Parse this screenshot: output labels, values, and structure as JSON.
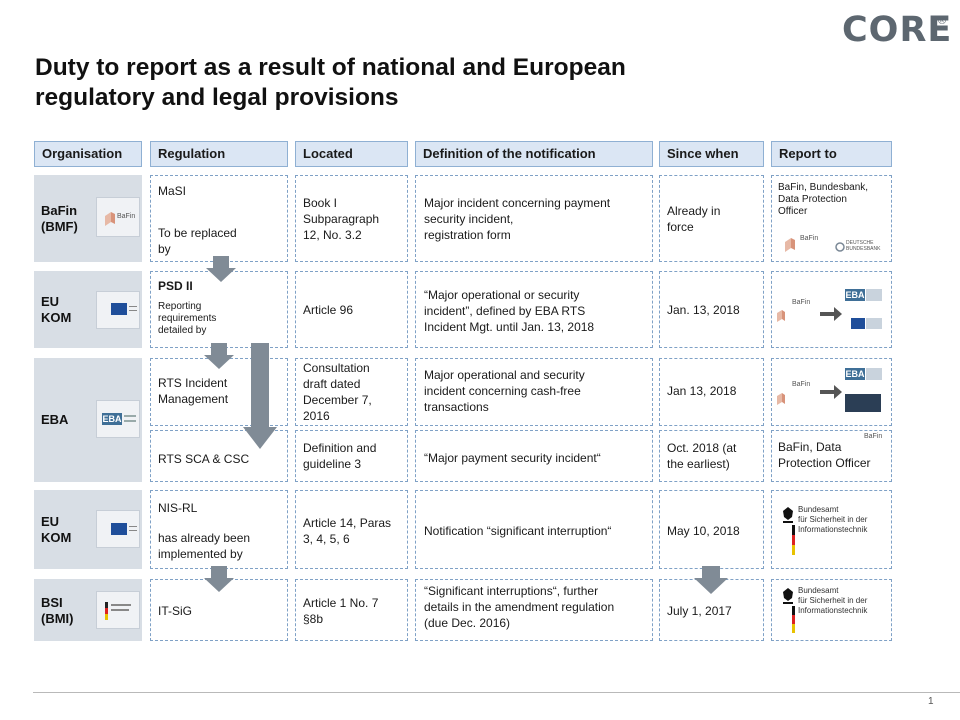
{
  "brand": {
    "name": "CORE",
    "registered": "®"
  },
  "title": {
    "line1": "Duty to report as a result of national and European",
    "line2": "regulatory and legal provisions"
  },
  "headers": {
    "organisation": "Organisation",
    "regulation": "Regulation",
    "located": "Located",
    "definition": "Definition of the notification",
    "since": "Since when",
    "report_to": "Report to"
  },
  "rows": [
    {
      "org": "BaFin\n(BMF)",
      "org_logo": "BaFin",
      "reg_main": "MaSI",
      "reg_note": "To be replaced\nby",
      "located": "Book I\nSubparagraph\n12, No. 3.2",
      "definition": "Major incident concerning payment\nsecurity incident,\nregistration form",
      "since": "Already in\nforce",
      "report_text": "BaFin, Bundesbank,\nData Protection\nOfficer",
      "report_logo1": "BaFin",
      "report_logo2": "DEUTSCHE\nBUNDESBANK"
    },
    {
      "org": "EU\nKOM",
      "reg_main": "PSD II",
      "reg_note": "Reporting\nrequirements\ndetailed by",
      "located": "Article 96",
      "definition": "“Major operational  or security\nincident”, defined  by EBA RTS\nIncident Mgt. until Jan. 13, 2018",
      "since": "Jan. 13, 2018",
      "report_logo1": "BaFin",
      "report_logo2": "EBA"
    },
    {
      "org": "EBA",
      "org_logo": "EBA",
      "reg_main": "RTS Incident\nManagement",
      "located": "Consultation\ndraft dated\nDecember 7,\n2016",
      "definition": "Major operational and security\nincident concerning cash-free\ntransactions",
      "since": "Jan 13, 2018",
      "report_logo1": "BaFin",
      "report_logo2": "EBA"
    },
    {
      "reg_main": "RTS SCA & CSC",
      "located": "Definition and\nguideline 3",
      "definition": "“Major payment security incident“",
      "since": "Oct. 2018 (at\nthe earliest)",
      "report_text": "BaFin, Data\nProtection Officer",
      "report_logo1": "BaFin"
    },
    {
      "org": "EU\nKOM",
      "reg_main": "NIS-RL",
      "reg_note": "has already been\nimplemented  by",
      "located": "Article 14, Paras\n3, 4, 5, 6",
      "definition": "Notification  “significant interruption“",
      "since": "May 10, 2018",
      "report_logo_bsi": "Bundesamt\nfür Sicherheit in der\nInformationstechnik"
    },
    {
      "org": "BSI\n(BMI)",
      "reg_main": "IT-SiG",
      "located": "Article 1 No. 7\n§8b",
      "definition": "“Significant interruptions“, further\ndetails in the amendment regulation\n(due Dec. 2016)",
      "since": "July 1, 2017",
      "report_logo_bsi": "Bundesamt\nfür Sicherheit in der\nInformationstechnik"
    }
  ],
  "page_number": "1",
  "colors": {
    "header_bg": "#dbe6f4",
    "org_bg": "#d8dee5",
    "arrow": "#808b96",
    "eu_blue": "#1f4e9a"
  }
}
